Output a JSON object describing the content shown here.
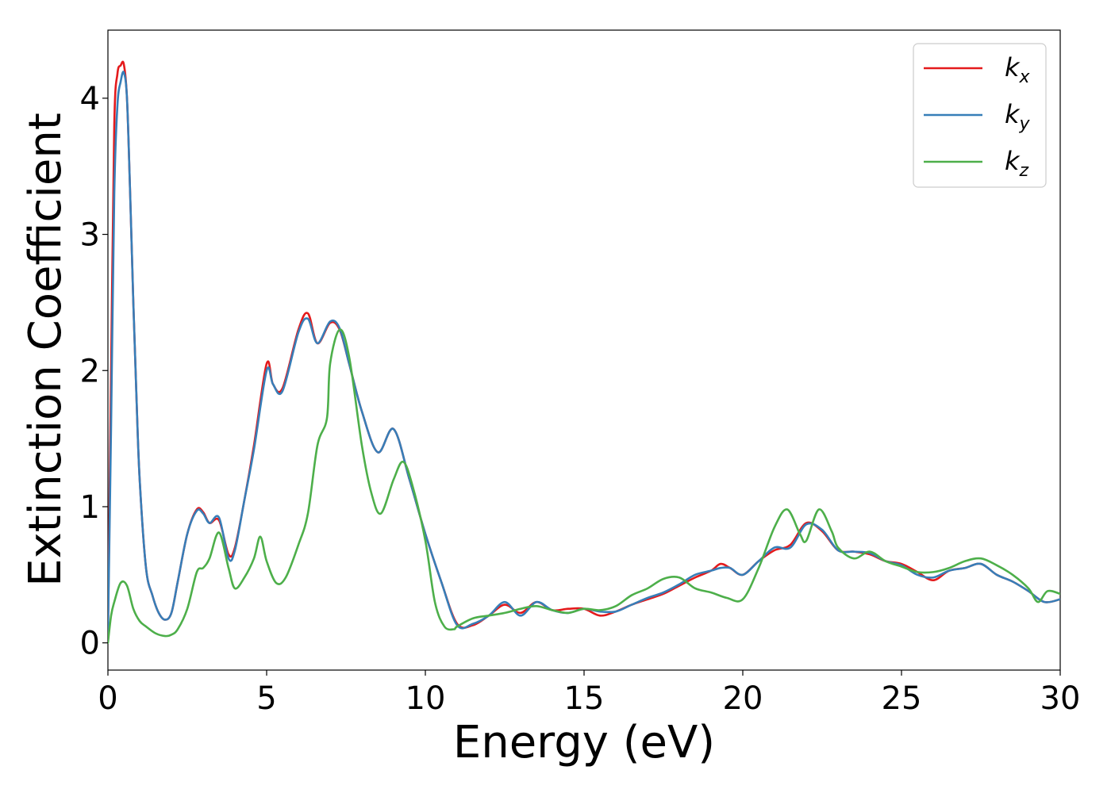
{
  "chart_data": {
    "type": "line",
    "title": "",
    "xlabel": "Energy (eV)",
    "ylabel": "Extinction Coefficient",
    "xlim": [
      0,
      30
    ],
    "ylim": [
      -0.2,
      4.5
    ],
    "xticks": [
      0,
      5,
      10,
      15,
      20,
      25,
      30
    ],
    "yticks": [
      0,
      1,
      2,
      3,
      4
    ],
    "grid": false,
    "legend_position": "top-right",
    "series": [
      {
        "name": "k",
        "subscript": "x",
        "color": "#e41a1c",
        "x": [
          0,
          0.1,
          0.2,
          0.3,
          0.4,
          0.5,
          0.6,
          0.7,
          0.8,
          0.9,
          1.0,
          1.2,
          1.4,
          1.6,
          1.8,
          2.0,
          2.2,
          2.5,
          2.8,
          3.0,
          3.2,
          3.5,
          3.8,
          4.0,
          4.3,
          4.6,
          5.0,
          5.2,
          5.5,
          6.0,
          6.3,
          6.6,
          7.0,
          7.3,
          7.6,
          8.0,
          8.5,
          9.0,
          9.5,
          10.0,
          10.5,
          11.0,
          11.5,
          12.0,
          12.5,
          13.0,
          13.5,
          14.0,
          14.5,
          15.0,
          15.5,
          16.0,
          16.5,
          17.0,
          17.5,
          18.0,
          18.5,
          19.0,
          19.3,
          19.6,
          20.0,
          20.5,
          21.0,
          21.5,
          22.0,
          22.5,
          23.0,
          23.5,
          24.0,
          24.5,
          25.0,
          25.5,
          26.0,
          26.5,
          27.0,
          27.5,
          28.0,
          28.5,
          29.0,
          29.5,
          30.0
        ],
        "y": [
          0.05,
          2.0,
          3.8,
          4.18,
          4.24,
          4.25,
          4.0,
          3.3,
          2.5,
          1.8,
          1.2,
          0.55,
          0.35,
          0.22,
          0.17,
          0.22,
          0.45,
          0.8,
          0.98,
          0.96,
          0.88,
          0.9,
          0.65,
          0.7,
          1.05,
          1.45,
          2.05,
          1.9,
          1.87,
          2.3,
          2.42,
          2.2,
          2.35,
          2.3,
          2.05,
          1.7,
          1.4,
          1.57,
          1.2,
          0.8,
          0.45,
          0.14,
          0.13,
          0.2,
          0.28,
          0.22,
          0.3,
          0.24,
          0.25,
          0.25,
          0.2,
          0.23,
          0.28,
          0.32,
          0.36,
          0.42,
          0.48,
          0.53,
          0.58,
          0.55,
          0.5,
          0.6,
          0.68,
          0.72,
          0.88,
          0.82,
          0.68,
          0.67,
          0.65,
          0.6,
          0.58,
          0.52,
          0.46,
          0.53,
          0.55,
          0.58,
          0.5,
          0.45,
          0.38,
          0.3,
          0.32
        ]
      },
      {
        "name": "k",
        "subscript": "y",
        "color": "#377eb8",
        "x": [
          0,
          0.1,
          0.2,
          0.3,
          0.4,
          0.5,
          0.6,
          0.7,
          0.8,
          0.9,
          1.0,
          1.2,
          1.4,
          1.6,
          1.8,
          2.0,
          2.2,
          2.5,
          2.8,
          3.0,
          3.2,
          3.5,
          3.8,
          4.0,
          4.3,
          4.6,
          5.0,
          5.2,
          5.5,
          6.0,
          6.3,
          6.6,
          7.0,
          7.3,
          7.6,
          8.0,
          8.5,
          9.0,
          9.5,
          10.0,
          10.5,
          11.0,
          11.5,
          12.0,
          12.5,
          13.0,
          13.5,
          14.0,
          14.5,
          15.0,
          15.5,
          16.0,
          16.5,
          17.0,
          17.5,
          18.0,
          18.5,
          19.0,
          19.3,
          19.6,
          20.0,
          20.5,
          21.0,
          21.5,
          22.0,
          22.5,
          23.0,
          23.5,
          24.0,
          24.5,
          25.0,
          25.5,
          26.0,
          26.5,
          27.0,
          27.5,
          28.0,
          28.5,
          29.0,
          29.5,
          30.0
        ],
        "y": [
          0.05,
          1.6,
          3.3,
          3.95,
          4.12,
          4.19,
          4.0,
          3.3,
          2.5,
          1.8,
          1.2,
          0.55,
          0.35,
          0.22,
          0.17,
          0.22,
          0.45,
          0.8,
          0.97,
          0.95,
          0.88,
          0.92,
          0.62,
          0.68,
          1.05,
          1.42,
          2.0,
          1.9,
          1.85,
          2.28,
          2.38,
          2.2,
          2.36,
          2.31,
          2.05,
          1.7,
          1.4,
          1.57,
          1.2,
          0.8,
          0.45,
          0.13,
          0.14,
          0.2,
          0.3,
          0.2,
          0.3,
          0.24,
          0.22,
          0.25,
          0.23,
          0.23,
          0.28,
          0.33,
          0.37,
          0.43,
          0.5,
          0.53,
          0.55,
          0.55,
          0.5,
          0.6,
          0.7,
          0.7,
          0.87,
          0.83,
          0.68,
          0.67,
          0.66,
          0.6,
          0.57,
          0.5,
          0.48,
          0.53,
          0.55,
          0.58,
          0.5,
          0.45,
          0.38,
          0.3,
          0.32
        ]
      },
      {
        "name": "k",
        "subscript": "z",
        "color": "#4daf4a",
        "x": [
          0,
          0.1,
          0.2,
          0.4,
          0.6,
          0.8,
          1.0,
          1.2,
          1.5,
          1.8,
          2.0,
          2.2,
          2.5,
          2.8,
          3.0,
          3.2,
          3.5,
          3.8,
          4.0,
          4.3,
          4.6,
          4.8,
          5.0,
          5.3,
          5.6,
          6.0,
          6.3,
          6.6,
          6.9,
          7.0,
          7.3,
          7.6,
          8.0,
          8.3,
          8.6,
          9.0,
          9.3,
          9.6,
          10.0,
          10.3,
          10.6,
          10.9,
          11.0,
          11.5,
          12.0,
          12.5,
          13.0,
          13.5,
          14.0,
          14.5,
          15.0,
          15.5,
          16.0,
          16.5,
          17.0,
          17.5,
          18.0,
          18.5,
          19.0,
          19.5,
          20.0,
          20.5,
          21.0,
          21.4,
          21.8,
          22.0,
          22.4,
          22.8,
          23.0,
          23.5,
          24.0,
          24.5,
          25.0,
          25.5,
          26.0,
          26.5,
          27.0,
          27.5,
          28.0,
          28.5,
          29.0,
          29.3,
          29.6,
          30.0
        ],
        "y": [
          0.0,
          0.2,
          0.3,
          0.44,
          0.42,
          0.25,
          0.16,
          0.12,
          0.07,
          0.05,
          0.06,
          0.1,
          0.25,
          0.52,
          0.55,
          0.62,
          0.81,
          0.55,
          0.4,
          0.48,
          0.62,
          0.78,
          0.6,
          0.44,
          0.48,
          0.72,
          0.95,
          1.45,
          1.65,
          2.05,
          2.3,
          2.1,
          1.45,
          1.1,
          0.95,
          1.2,
          1.33,
          1.15,
          0.75,
          0.3,
          0.12,
          0.1,
          0.12,
          0.18,
          0.2,
          0.22,
          0.25,
          0.27,
          0.24,
          0.22,
          0.25,
          0.24,
          0.27,
          0.35,
          0.4,
          0.47,
          0.48,
          0.4,
          0.37,
          0.33,
          0.32,
          0.55,
          0.85,
          0.98,
          0.8,
          0.75,
          0.98,
          0.82,
          0.7,
          0.62,
          0.67,
          0.6,
          0.56,
          0.52,
          0.52,
          0.55,
          0.6,
          0.62,
          0.57,
          0.5,
          0.4,
          0.3,
          0.38,
          0.36
        ]
      }
    ]
  }
}
